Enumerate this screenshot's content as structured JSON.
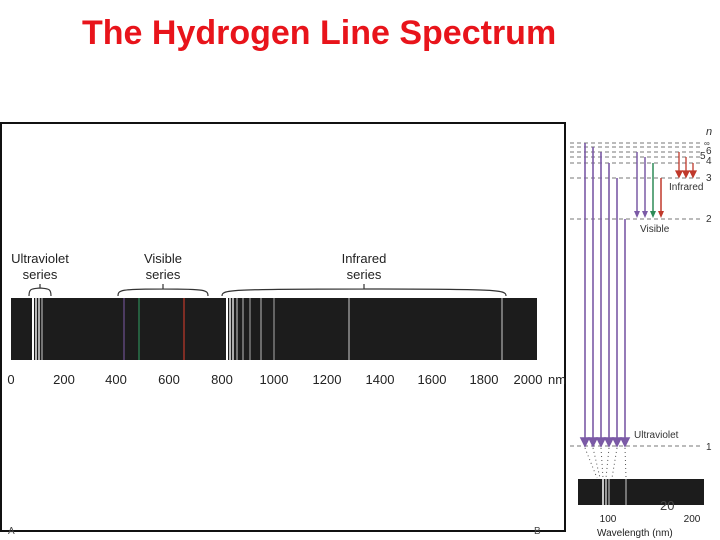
{
  "title": "The Hydrogen Line Spectrum",
  "page_number": "20",
  "corner_marks": {
    "left": "A",
    "right": "B"
  },
  "colors": {
    "title": "#e8141b",
    "violet": "#7b5aa6",
    "red": "#c0392b",
    "green": "#2e8b57",
    "band": "#1c1c1c"
  },
  "spectrum": {
    "series_labels": [
      {
        "line1": "Ultraviolet",
        "line2": "series"
      },
      {
        "line1": "Visible",
        "line2": "series"
      },
      {
        "line1": "Infrared",
        "line2": "series"
      }
    ],
    "axis_ticks": [
      "0",
      "200",
      "400",
      "600",
      "800",
      "1000",
      "1200",
      "1400",
      "1600",
      "1800",
      "2000"
    ],
    "axis_unit": "nm"
  },
  "energy_diagram": {
    "n_symbol": "n",
    "infinity": "∞",
    "levels": [
      "6",
      "5",
      "4",
      "3",
      "2",
      "1"
    ],
    "labels": {
      "infrared": "Infrared",
      "visible": "Visible",
      "ultraviolet": "Ultraviolet"
    },
    "mini_axis": {
      "ticks": [
        "100",
        "200"
      ],
      "label": "Wavelength (nm)"
    }
  }
}
